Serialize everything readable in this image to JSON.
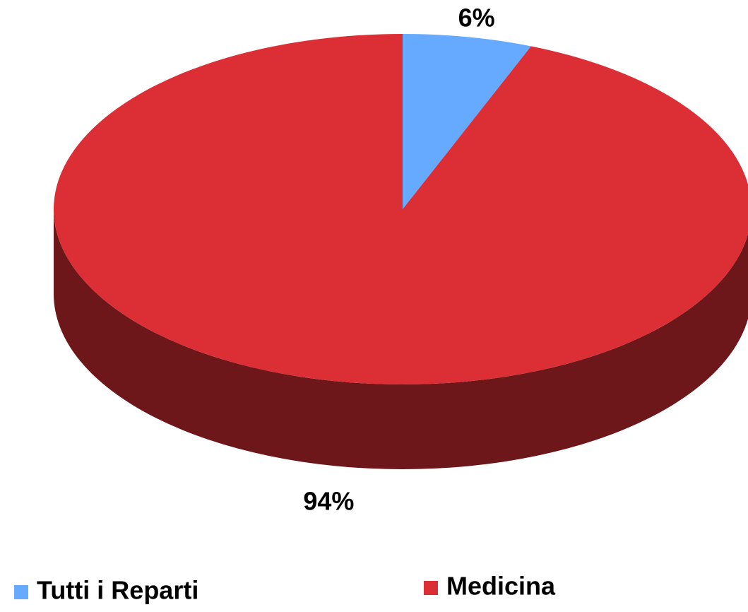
{
  "chart_data": {
    "type": "pie",
    "three_d": true,
    "categories": [
      "Tutti i Reparti",
      "Medicina"
    ],
    "values": [
      6,
      94
    ],
    "value_labels": [
      "6%",
      "94%"
    ],
    "colors": [
      "#66aaff",
      "#dc2f35"
    ],
    "side_colors": [
      "#2f5a8a",
      "#6e171a"
    ],
    "legend": "bottom"
  }
}
